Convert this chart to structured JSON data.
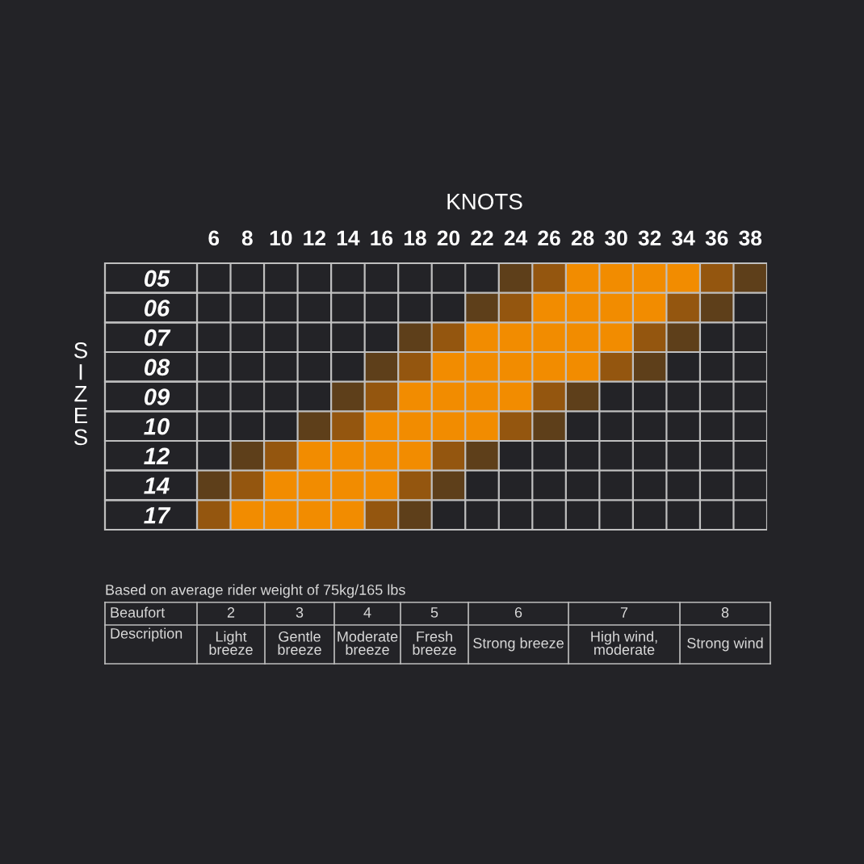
{
  "chart_data": {
    "type": "bar",
    "orientation": "horizontal",
    "xlabel": "KNOTS",
    "ylabel": "SIZES",
    "categories": [
      "05",
      "06",
      "07",
      "08",
      "09",
      "10",
      "12",
      "14",
      "17"
    ],
    "xlim": [
      5,
      39
    ],
    "xticks": [
      6,
      8,
      10,
      12,
      14,
      16,
      18,
      20,
      22,
      24,
      26,
      28,
      30,
      32,
      34,
      36,
      38
    ],
    "grid": true,
    "series": [
      {
        "color": "#5e3f1a",
        "base": [
          23,
          21,
          17,
          15,
          13,
          11,
          7,
          5,
          null
        ],
        "values": [
          2,
          2,
          2,
          2,
          2,
          2,
          2,
          2,
          null
        ]
      },
      {
        "color": "#94560f",
        "base": [
          25,
          23,
          19,
          17,
          15,
          13,
          9,
          7,
          5
        ],
        "values": [
          2,
          2,
          2,
          2,
          2,
          2,
          2,
          2,
          2
        ]
      },
      {
        "color": "#f28c00",
        "base": [
          27,
          25,
          21,
          19,
          17,
          15,
          11,
          9,
          7
        ],
        "values": [
          8,
          8,
          10,
          10,
          8,
          8,
          8,
          8,
          8
        ]
      },
      {
        "color": "#94560f",
        "base": [
          35,
          33,
          31,
          29,
          25,
          23,
          19,
          17,
          15
        ],
        "values": [
          2,
          2,
          2,
          2,
          2,
          2,
          2,
          2,
          2
        ]
      },
      {
        "color": "#5e3f1a",
        "base": [
          37,
          35,
          33,
          31,
          27,
          25,
          21,
          19,
          17
        ],
        "values": [
          2,
          2,
          2,
          2,
          2,
          2,
          2,
          2,
          2
        ]
      }
    ],
    "annotations": [
      "Based on average rider weight of 75kg/165 lbs",
      "Beaufort",
      "2",
      "3",
      "4",
      "5",
      "6",
      "7",
      "8",
      "Description",
      "Light\nbreeze",
      "Gentle\nbreeze",
      "Moderate\nbreeze",
      "Fresh\nbreeze",
      "Strong breeze",
      "High wind,\nmoderate",
      "Strong wind"
    ]
  }
}
